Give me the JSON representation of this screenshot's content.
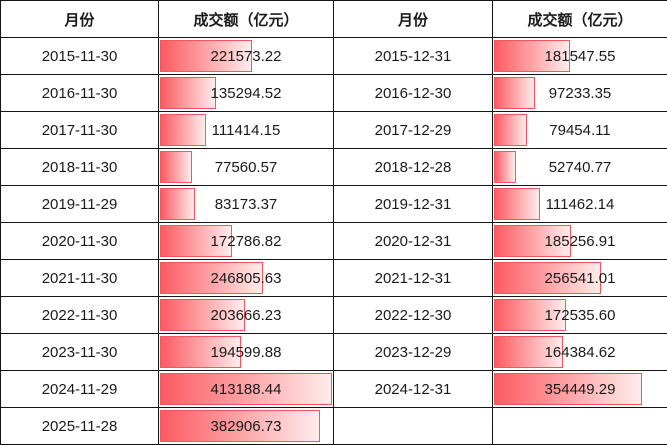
{
  "header": {
    "month_label": "月份",
    "amount_label": "成交额（亿元）"
  },
  "left_rows": [
    {
      "date": "2015-11-30",
      "value": "221573.22"
    },
    {
      "date": "2016-11-30",
      "value": "135294.52"
    },
    {
      "date": "2017-11-30",
      "value": "111414.15"
    },
    {
      "date": "2018-11-30",
      "value": "77560.57"
    },
    {
      "date": "2019-11-29",
      "value": "83173.37"
    },
    {
      "date": "2020-11-30",
      "value": "172786.82"
    },
    {
      "date": "2021-11-30",
      "value": "246805.63"
    },
    {
      "date": "2022-11-30",
      "value": "203666.23"
    },
    {
      "date": "2023-11-30",
      "value": "194599.88"
    },
    {
      "date": "2024-11-29",
      "value": "413188.44"
    },
    {
      "date": "2025-11-28",
      "value": "382906.73"
    }
  ],
  "right_rows": [
    {
      "date": "2015-12-31",
      "value": "181547.55"
    },
    {
      "date": "2016-12-30",
      "value": "97233.35"
    },
    {
      "date": "2017-12-29",
      "value": "79454.11"
    },
    {
      "date": "2018-12-28",
      "value": "52740.77"
    },
    {
      "date": "2019-12-31",
      "value": "111462.14"
    },
    {
      "date": "2020-12-31",
      "value": "185256.91"
    },
    {
      "date": "2021-12-31",
      "value": "256541.01"
    },
    {
      "date": "2022-12-30",
      "value": "172535.60"
    },
    {
      "date": "2023-12-29",
      "value": "164384.62"
    },
    {
      "date": "2024-12-31",
      "value": "354449.29"
    },
    {
      "date": "",
      "value": ""
    }
  ],
  "chart_data": {
    "type": "table",
    "column_headers": [
      "月份",
      "成交额（亿元）",
      "月份",
      "成交额（亿元）"
    ],
    "series": [
      {
        "name": "november-column",
        "dates": [
          "2015-11-30",
          "2016-11-30",
          "2017-11-30",
          "2018-11-30",
          "2019-11-29",
          "2020-11-30",
          "2021-11-30",
          "2022-11-30",
          "2023-11-30",
          "2024-11-29",
          "2025-11-28"
        ],
        "values": [
          221573.22,
          135294.52,
          111414.15,
          77560.57,
          83173.37,
          172786.82,
          246805.63,
          203666.23,
          194599.88,
          413188.44,
          382906.73
        ]
      },
      {
        "name": "december-column",
        "dates": [
          "2015-12-31",
          "2016-12-30",
          "2017-12-29",
          "2018-12-28",
          "2019-12-31",
          "2020-12-31",
          "2021-12-31",
          "2022-12-30",
          "2023-12-29",
          "2024-12-31"
        ],
        "values": [
          181547.55,
          97233.35,
          79454.11,
          52740.77,
          111462.14,
          185256.91,
          256541.01,
          172535.6,
          164384.62,
          354449.29
        ]
      }
    ],
    "bar_scale_max": 413188.44,
    "bar_max_width_pct": 99,
    "bar_fill_start": "#fb5b61",
    "bar_fill_end": "#ffecec",
    "bar_border": "#f4555e",
    "grid_color": "#141414",
    "legend_position": "none",
    "grid": true
  }
}
